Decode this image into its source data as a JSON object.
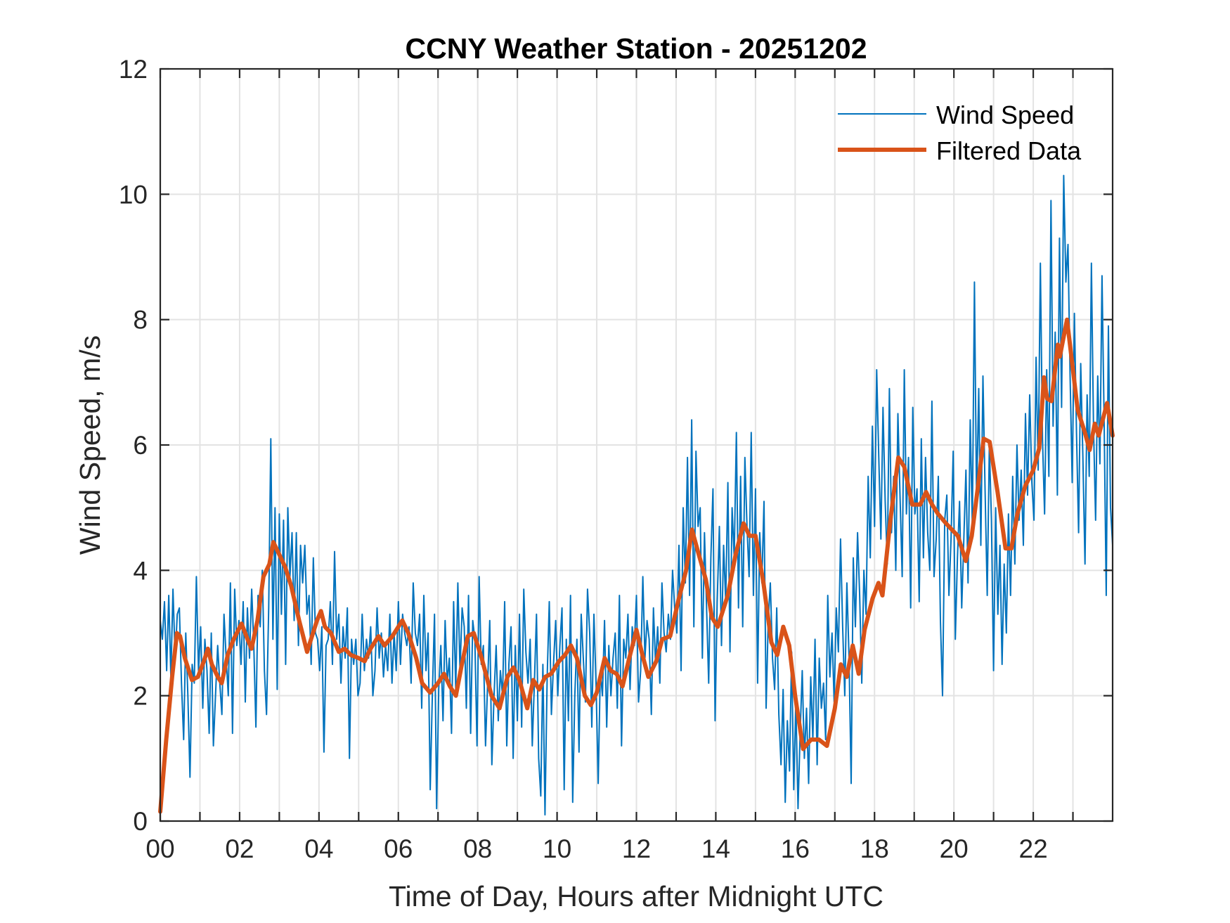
{
  "chart_data": {
    "type": "line",
    "title": "CCNY Weather Station - 20251202",
    "xlabel": "Time of Day, Hours after Midnight UTC",
    "ylabel": "Wind Speed, m/s",
    "xlim": [
      0,
      24
    ],
    "ylim": [
      0,
      12
    ],
    "x_ticks": [
      0,
      1,
      2,
      3,
      4,
      5,
      6,
      7,
      8,
      9,
      10,
      11,
      12,
      13,
      14,
      15,
      16,
      17,
      18,
      19,
      20,
      21,
      22,
      23
    ],
    "x_tick_labels": [
      "00",
      "",
      "02",
      "",
      "04",
      "",
      "06",
      "",
      "08",
      "",
      "10",
      "",
      "12",
      "",
      "14",
      "",
      "16",
      "",
      "18",
      "",
      "20",
      "",
      "22",
      ""
    ],
    "y_ticks": [
      0,
      2,
      4,
      6,
      8,
      10,
      12
    ],
    "y_tick_labels": [
      "0",
      "2",
      "4",
      "6",
      "8",
      "10",
      "12"
    ],
    "grid": true,
    "legend_position": "top-right",
    "series": [
      {
        "name": "Wind Speed",
        "color": "#0072BD",
        "x_start": 0,
        "x_step": 0.05,
        "values": [
          3.2,
          2.9,
          3.5,
          2.4,
          3.6,
          2.3,
          3.7,
          2.6,
          3.3,
          3.4,
          2.2,
          1.3,
          3.0,
          2.0,
          0.7,
          2.5,
          2.2,
          3.9,
          2.4,
          3.1,
          1.8,
          2.9,
          2.4,
          1.4,
          3.0,
          1.2,
          2.0,
          2.8,
          2.2,
          1.7,
          3.3,
          2.6,
          2.0,
          3.8,
          1.4,
          3.7,
          2.8,
          3.2,
          2.5,
          3.5,
          1.9,
          3.4,
          2.6,
          3.7,
          2.8,
          1.5,
          3.6,
          3.1,
          4.0,
          2.4,
          1.7,
          3.4,
          6.1,
          2.9,
          5.0,
          2.1,
          4.9,
          3.3,
          4.8,
          2.5,
          5.0,
          3.9,
          4.6,
          3.2,
          4.6,
          2.8,
          4.4,
          3.8,
          4.4,
          3.3,
          3.6,
          2.5,
          4.2,
          3.0,
          2.9,
          2.4,
          3.1,
          1.1,
          2.8,
          2.9,
          3.5,
          2.5,
          4.3,
          2.9,
          3.3,
          2.2,
          3.1,
          2.6,
          3.4,
          1.0,
          2.9,
          2.5,
          2.9,
          2.0,
          2.2,
          3.3,
          2.4,
          2.9,
          2.6,
          3.1,
          2.0,
          2.4,
          3.4,
          2.6,
          3.0,
          2.3,
          2.8,
          2.4,
          3.3,
          2.2,
          3.0,
          2.4,
          3.5,
          2.5,
          3.3,
          3.0,
          2.8,
          3.1,
          2.2,
          3.8,
          3.0,
          2.8,
          3.3,
          1.8,
          3.6,
          2.4,
          3.0,
          0.5,
          2.0,
          3.3,
          0.2,
          2.1,
          2.8,
          1.6,
          3.2,
          2.2,
          2.6,
          1.4,
          3.5,
          2.1,
          3.8,
          2.4,
          3.4,
          3.1,
          1.8,
          3.6,
          1.4,
          3.2,
          2.9,
          1.2,
          3.9,
          2.5,
          2.8,
          1.2,
          2.2,
          3.2,
          0.9,
          2.0,
          2.8,
          1.6,
          2.4,
          2.0,
          3.5,
          1.2,
          2.5,
          3.1,
          1.0,
          2.8,
          1.6,
          3.3,
          1.5,
          3.7,
          2.7,
          2.2,
          2.9,
          1.2,
          2.2,
          3.3,
          1.0,
          0.4,
          2.5,
          0.1,
          2.3,
          3.5,
          1.7,
          2.5,
          3.2,
          2.0,
          2.8,
          3.4,
          0.5,
          2.9,
          1.6,
          3.6,
          0.3,
          2.0,
          2.9,
          1.1,
          3.3,
          2.6,
          1.9,
          3.7,
          3.0,
          1.5,
          3.3,
          2.2,
          0.6,
          2.4,
          2.0,
          3.2,
          1.5,
          2.8,
          2.0,
          2.6,
          3.0,
          1.8,
          3.6,
          1.2,
          2.9,
          2.6,
          3.3,
          2.1,
          3.1,
          2.8,
          3.6,
          1.9,
          2.4,
          3.9,
          2.6,
          3.2,
          2.9,
          1.7,
          3.4,
          2.5,
          3.1,
          2.2,
          3.8,
          3.0,
          2.7,
          3.3,
          2.9,
          4.0,
          3.4,
          3.0,
          4.4,
          2.4,
          5.0,
          3.8,
          5.8,
          3.6,
          6.4,
          3.1,
          5.9,
          4.7,
          5.0,
          2.6,
          4.6,
          3.4,
          2.2,
          4.2,
          5.3,
          1.6,
          3.5,
          4.7,
          2.8,
          4.4,
          3.5,
          5.4,
          2.7,
          5.0,
          4.2,
          6.2,
          3.4,
          5.5,
          3.1,
          5.8,
          4.7,
          3.9,
          6.2,
          3.6,
          5.3,
          2.2,
          4.6,
          3.8,
          5.1,
          1.8,
          3.2,
          3.8,
          2.6,
          2.1,
          3.4,
          1.7,
          0.9,
          2.1,
          0.3,
          1.6,
          0.8,
          2.7,
          0.5,
          1.9,
          0.2,
          1.4,
          2.4,
          1.0,
          1.8,
          0.6,
          2.3,
          1.3,
          2.9,
          0.9,
          2.6,
          1.8,
          2.2,
          1.3,
          3.6,
          2.3,
          3.0,
          1.9,
          3.4,
          2.7,
          4.5,
          3.1,
          2.0,
          3.8,
          2.6,
          0.6,
          4.2,
          3.1,
          4.6,
          3.6,
          2.2,
          4.0,
          3.3,
          5.5,
          4.2,
          6.3,
          4.7,
          7.2,
          5.8,
          4.5,
          6.6,
          5.1,
          4.1,
          6.9,
          4.6,
          5.5,
          4.0,
          6.5,
          5.2,
          3.9,
          7.2,
          4.9,
          5.8,
          3.4,
          6.6,
          4.9,
          5.3,
          3.5,
          6.1,
          4.2,
          5.8,
          4.6,
          4.0,
          6.7,
          3.9,
          4.5,
          5.5,
          3.2,
          2.0,
          4.8,
          5.2,
          3.6,
          4.5,
          5.9,
          2.9,
          4.2,
          5.1,
          3.4,
          4.5,
          5.6,
          3.8,
          6.4,
          4.7,
          8.6,
          5.1,
          6.9,
          4.4,
          7.1,
          5.3,
          3.6,
          6.0,
          4.8,
          2.4,
          5.0,
          3.3,
          4.4,
          2.5,
          4.1,
          3.0,
          4.9,
          3.6,
          5.5,
          4.1,
          6.0,
          4.8,
          5.6,
          4.4,
          6.5,
          5.2,
          6.8,
          5.4,
          4.8,
          7.4,
          5.6,
          8.9,
          6.1,
          4.9,
          7.2,
          5.5,
          9.9,
          6.3,
          7.8,
          5.2,
          9.3,
          6.6,
          10.3,
          8.6,
          9.2,
          7.1,
          5.4,
          8.1,
          6.2,
          4.6,
          7.3,
          5.8,
          4.1,
          6.8,
          5.5,
          8.9,
          6.3,
          4.8,
          7.1,
          5.7,
          8.7,
          6.4,
          3.6,
          7.9,
          5.0,
          4.4
        ]
      },
      {
        "name": "Filtered Data",
        "color": "#D95319",
        "points": [
          [
            0.0,
            0.15
          ],
          [
            0.15,
            1.3
          ],
          [
            0.3,
            2.3
          ],
          [
            0.42,
            3.0
          ],
          [
            0.5,
            2.95
          ],
          [
            0.62,
            2.6
          ],
          [
            0.8,
            2.25
          ],
          [
            0.95,
            2.3
          ],
          [
            1.1,
            2.55
          ],
          [
            1.2,
            2.75
          ],
          [
            1.3,
            2.5
          ],
          [
            1.45,
            2.3
          ],
          [
            1.55,
            2.2
          ],
          [
            1.7,
            2.65
          ],
          [
            1.85,
            2.9
          ],
          [
            2.05,
            3.15
          ],
          [
            2.2,
            2.9
          ],
          [
            2.3,
            2.75
          ],
          [
            2.45,
            3.2
          ],
          [
            2.6,
            3.9
          ],
          [
            2.75,
            4.1
          ],
          [
            2.85,
            4.45
          ],
          [
            3.0,
            4.25
          ],
          [
            3.15,
            4.05
          ],
          [
            3.3,
            3.75
          ],
          [
            3.5,
            3.2
          ],
          [
            3.6,
            2.95
          ],
          [
            3.7,
            2.7
          ],
          [
            3.8,
            2.9
          ],
          [
            3.95,
            3.2
          ],
          [
            4.05,
            3.35
          ],
          [
            4.15,
            3.1
          ],
          [
            4.3,
            3.0
          ],
          [
            4.5,
            2.7
          ],
          [
            4.65,
            2.75
          ],
          [
            4.8,
            2.65
          ],
          [
            5.0,
            2.6
          ],
          [
            5.15,
            2.55
          ],
          [
            5.3,
            2.75
          ],
          [
            5.5,
            2.95
          ],
          [
            5.65,
            2.8
          ],
          [
            5.85,
            2.95
          ],
          [
            6.1,
            3.2
          ],
          [
            6.25,
            3.0
          ],
          [
            6.45,
            2.6
          ],
          [
            6.6,
            2.2
          ],
          [
            6.8,
            2.05
          ],
          [
            7.0,
            2.2
          ],
          [
            7.15,
            2.35
          ],
          [
            7.3,
            2.15
          ],
          [
            7.45,
            2.0
          ],
          [
            7.6,
            2.5
          ],
          [
            7.75,
            2.95
          ],
          [
            7.9,
            3.0
          ],
          [
            8.1,
            2.6
          ],
          [
            8.35,
            2.0
          ],
          [
            8.55,
            1.8
          ],
          [
            8.75,
            2.3
          ],
          [
            8.9,
            2.45
          ],
          [
            9.05,
            2.25
          ],
          [
            9.25,
            1.8
          ],
          [
            9.4,
            2.25
          ],
          [
            9.55,
            2.1
          ],
          [
            9.7,
            2.3
          ],
          [
            9.85,
            2.35
          ],
          [
            10.05,
            2.55
          ],
          [
            10.2,
            2.65
          ],
          [
            10.35,
            2.8
          ],
          [
            10.5,
            2.6
          ],
          [
            10.7,
            2.0
          ],
          [
            10.85,
            1.85
          ],
          [
            11.0,
            2.05
          ],
          [
            11.2,
            2.6
          ],
          [
            11.35,
            2.4
          ],
          [
            11.5,
            2.35
          ],
          [
            11.65,
            2.15
          ],
          [
            11.8,
            2.55
          ],
          [
            12.0,
            3.05
          ],
          [
            12.15,
            2.65
          ],
          [
            12.3,
            2.3
          ],
          [
            12.5,
            2.55
          ],
          [
            12.65,
            2.9
          ],
          [
            12.85,
            2.95
          ],
          [
            13.05,
            3.5
          ],
          [
            13.25,
            4.0
          ],
          [
            13.4,
            4.65
          ],
          [
            13.55,
            4.3
          ],
          [
            13.75,
            3.85
          ],
          [
            13.9,
            3.25
          ],
          [
            14.05,
            3.1
          ],
          [
            14.3,
            3.6
          ],
          [
            14.5,
            4.25
          ],
          [
            14.7,
            4.75
          ],
          [
            14.85,
            4.55
          ],
          [
            15.0,
            4.55
          ],
          [
            15.2,
            3.8
          ],
          [
            15.4,
            2.85
          ],
          [
            15.55,
            2.65
          ],
          [
            15.7,
            3.1
          ],
          [
            15.85,
            2.8
          ],
          [
            16.0,
            2.0
          ],
          [
            16.2,
            1.15
          ],
          [
            16.4,
            1.3
          ],
          [
            16.6,
            1.3
          ],
          [
            16.8,
            1.2
          ],
          [
            17.0,
            1.8
          ],
          [
            17.15,
            2.5
          ],
          [
            17.3,
            2.3
          ],
          [
            17.45,
            2.8
          ],
          [
            17.6,
            2.35
          ],
          [
            17.75,
            3.05
          ],
          [
            17.95,
            3.55
          ],
          [
            18.1,
            3.8
          ],
          [
            18.2,
            3.6
          ],
          [
            18.4,
            4.8
          ],
          [
            18.6,
            5.8
          ],
          [
            18.75,
            5.65
          ],
          [
            18.95,
            5.05
          ],
          [
            19.15,
            5.05
          ],
          [
            19.3,
            5.25
          ],
          [
            19.45,
            5.05
          ],
          [
            19.6,
            4.9
          ],
          [
            19.8,
            4.75
          ],
          [
            19.95,
            4.65
          ],
          [
            20.1,
            4.55
          ],
          [
            20.3,
            4.15
          ],
          [
            20.45,
            4.55
          ],
          [
            20.6,
            5.3
          ],
          [
            20.75,
            6.1
          ],
          [
            20.9,
            6.05
          ],
          [
            21.1,
            5.25
          ],
          [
            21.3,
            4.35
          ],
          [
            21.45,
            4.35
          ],
          [
            21.6,
            4.9
          ],
          [
            21.8,
            5.35
          ],
          [
            22.0,
            5.6
          ],
          [
            22.15,
            5.95
          ],
          [
            22.27,
            7.08
          ],
          [
            22.35,
            6.74
          ],
          [
            22.46,
            6.7
          ],
          [
            22.62,
            7.6
          ],
          [
            22.67,
            7.41
          ],
          [
            22.85,
            8.0
          ],
          [
            23.12,
            6.56
          ],
          [
            23.3,
            6.2
          ],
          [
            23.42,
            5.92
          ],
          [
            23.55,
            6.34
          ],
          [
            23.65,
            6.15
          ],
          [
            23.86,
            6.67
          ],
          [
            24.0,
            6.15
          ]
        ]
      }
    ]
  }
}
